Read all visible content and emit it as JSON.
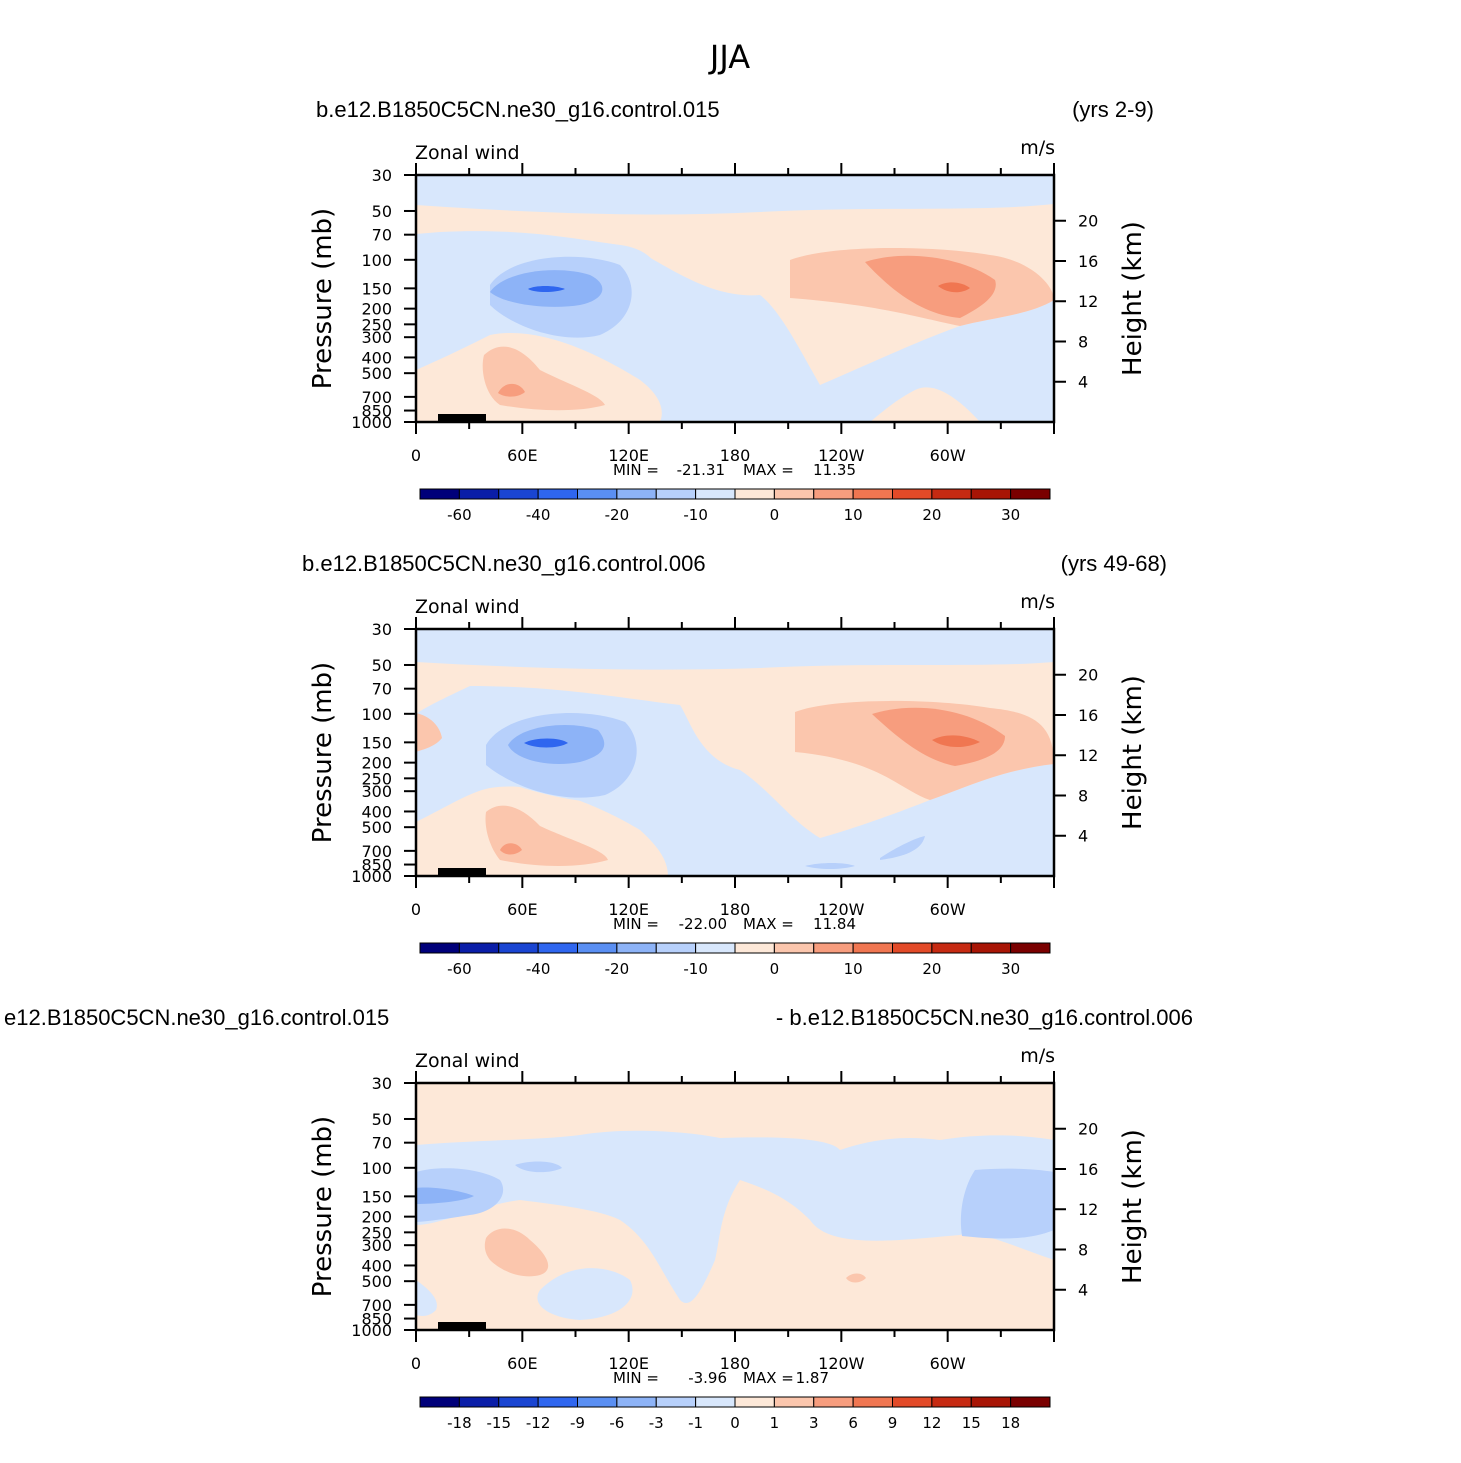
{
  "figure": {
    "title": "JJA"
  },
  "colors": {
    "neg": [
      "#00007a",
      "#0a1ea8",
      "#1a45d2",
      "#2f66ef",
      "#5a8ff3",
      "#8db3f7",
      "#b7d0fb",
      "#d8e7fc"
    ],
    "pos": [
      "#fde8d8",
      "#fbc6ad",
      "#f79d7e",
      "#f07651",
      "#e24a28",
      "#c62a12",
      "#a81505",
      "#7a0000"
    ]
  },
  "chart_data": [
    {
      "type": "heatmap",
      "left_title": "b.e12.B1850C5CN.ne30_g16.control.015",
      "right_title": "(yrs 2-9)",
      "field_label": "Zonal wind",
      "units_label": "m/s",
      "ylabel": "Pressure (mb)",
      "ylabel_right": "Height (km)",
      "y_ticks": [
        "30",
        "50",
        "70",
        "100",
        "150",
        "200",
        "250",
        "300",
        "400",
        "500",
        "700",
        "850",
        "1000"
      ],
      "y_right_ticks": [
        "20",
        "16",
        "12",
        "8",
        "4"
      ],
      "x_ticks": [
        "0",
        "60E",
        "120E",
        "180",
        "120W",
        "60W"
      ],
      "min_label": "MIN =",
      "min_value": "-21.31",
      "max_label": "MAX =",
      "max_value": "11.35",
      "colorbar_labels": [
        "-60",
        "-40",
        "-20",
        "-10",
        "0",
        "10",
        "20",
        "30"
      ]
    },
    {
      "type": "heatmap",
      "left_title": "b.e12.B1850C5CN.ne30_g16.control.006",
      "right_title": "(yrs 49-68)",
      "field_label": "Zonal wind",
      "units_label": "m/s",
      "ylabel": "Pressure (mb)",
      "ylabel_right": "Height (km)",
      "y_ticks": [
        "30",
        "50",
        "70",
        "100",
        "150",
        "200",
        "250",
        "300",
        "400",
        "500",
        "700",
        "850",
        "1000"
      ],
      "y_right_ticks": [
        "20",
        "16",
        "12",
        "8",
        "4"
      ],
      "x_ticks": [
        "0",
        "60E",
        "120E",
        "180",
        "120W",
        "60W"
      ],
      "min_label": "MIN =",
      "min_value": "-22.00",
      "max_label": "MAX =",
      "max_value": "11.84",
      "colorbar_labels": [
        "-60",
        "-40",
        "-20",
        "-10",
        "0",
        "10",
        "20",
        "30"
      ]
    },
    {
      "type": "heatmap",
      "left_title": "e12.B1850C5CN.ne30_g16.control.015",
      "right_title": "- b.e12.B1850C5CN.ne30_g16.control.006",
      "field_label": "Zonal wind",
      "units_label": "m/s",
      "ylabel": "Pressure (mb)",
      "ylabel_right": "Height (km)",
      "y_ticks": [
        "30",
        "50",
        "70",
        "100",
        "150",
        "200",
        "250",
        "300",
        "400",
        "500",
        "700",
        "850",
        "1000"
      ],
      "y_right_ticks": [
        "20",
        "16",
        "12",
        "8",
        "4"
      ],
      "x_ticks": [
        "0",
        "60E",
        "120E",
        "180",
        "120W",
        "60W"
      ],
      "min_label": "MIN =",
      "min_value": "-3.96",
      "max_label": "MAX =",
      "max_value": "1.87",
      "colorbar_labels": [
        "-18",
        "-15",
        "-12",
        "-9",
        "-6",
        "-3",
        "-1",
        "0",
        "1",
        "3",
        "6",
        "9",
        "12",
        "15",
        "18"
      ]
    }
  ]
}
